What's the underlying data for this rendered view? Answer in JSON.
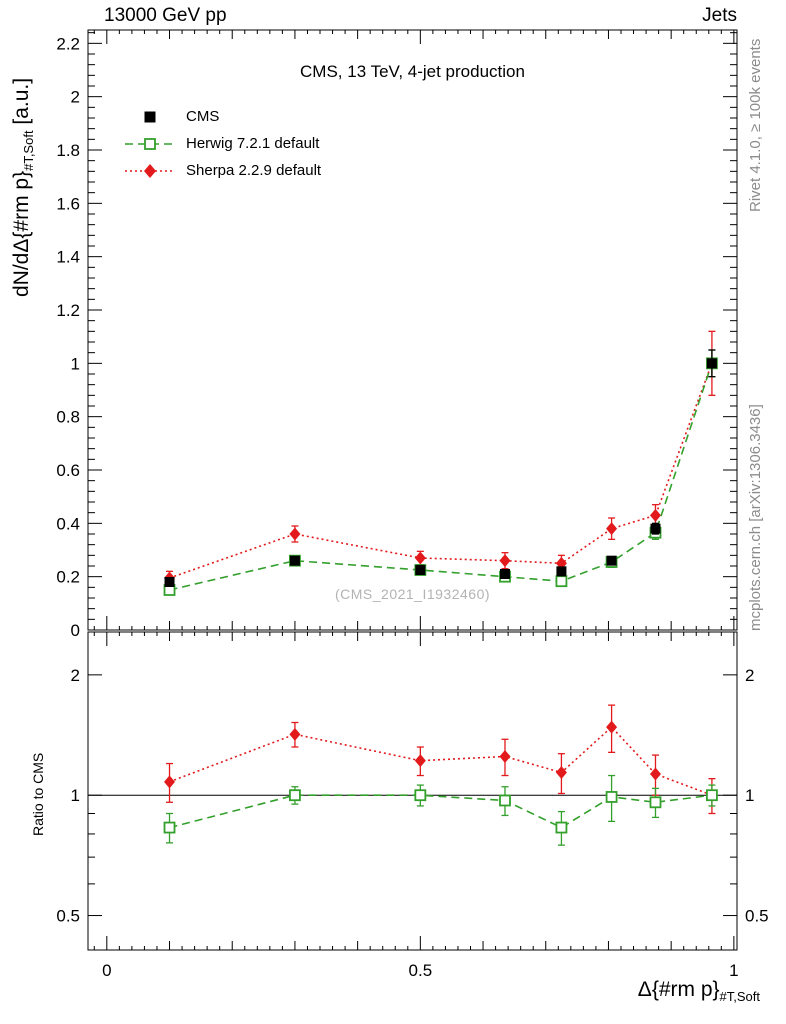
{
  "header": {
    "left": "13000 GeV pp",
    "right": "Jets"
  },
  "titles": {
    "plot_title": "CMS, 13 TeV, 4-jet production",
    "watermark": "(CMS_2021_I1932460)",
    "y_axis_main": "dN/dΔ{#rm p}",
    "y_axis_sub": "#T,Soft",
    "y_axis_unit": " [a.u.]",
    "ratio_y_label": "Ratio to CMS",
    "x_axis_main": "Δ{#rm p}",
    "x_axis_sub": "#T,Soft"
  },
  "side_notes": {
    "top_right": "Rivet 4.1.0, ≥ 100k events",
    "bottom_right": "mcplots.cern.ch [arXiv:1306.3436]"
  },
  "colors": {
    "axis": "#000000",
    "watermark": "#b3b3b3",
    "margin_notes": "#8c8c8c",
    "cms": "#000000",
    "herwig": "#33a02c",
    "sherpa": "#e31a1c"
  },
  "legend": [
    {
      "label": "CMS",
      "marker": "filled-square",
      "color": "#000000",
      "line": "none"
    },
    {
      "label": "Herwig 7.2.1 default",
      "marker": "open-square",
      "color": "#33a02c",
      "line": "dashed"
    },
    {
      "label": "Sherpa 2.2.9 default",
      "marker": "diamond",
      "color": "#e31a1c",
      "line": "dotted"
    }
  ],
  "chart_data": [
    {
      "type": "scatter",
      "role": "main",
      "title": "CMS, 13 TeV, 4-jet production",
      "xlabel": "Δ{#rm p}_{#T,Soft}",
      "ylabel": "dN/dΔ{#rm p}_{#T,Soft} [a.u.]",
      "xlim": [
        -0.03,
        1.005
      ],
      "ylim": [
        0,
        2.25
      ],
      "yscale": "linear",
      "xticks": [
        0,
        0.5,
        1
      ],
      "yticks": [
        0,
        0.2,
        0.4,
        0.6,
        0.8,
        1,
        1.2,
        1.4,
        1.6,
        1.8,
        2,
        2.2
      ],
      "grid": false,
      "legend_position": "top-left",
      "x": [
        0.1,
        0.3,
        0.5,
        0.635,
        0.725,
        0.805,
        0.875,
        0.965
      ],
      "series": [
        {
          "name": "CMS",
          "marker": "filled-square",
          "color": "#000000",
          "line": "none",
          "values": [
            0.18,
            0.26,
            0.225,
            0.21,
            0.22,
            0.26,
            0.38,
            1.0
          ],
          "errors": [
            0.012,
            0.012,
            0.012,
            0.012,
            0.012,
            0.015,
            0.02,
            0.05
          ]
        },
        {
          "name": "Herwig 7.2.1 default",
          "marker": "open-square",
          "color": "#33a02c",
          "line": "dashed",
          "values": [
            0.15,
            0.26,
            0.225,
            0.2,
            0.183,
            0.255,
            0.365,
            1.0
          ],
          "errors": [
            0.015,
            0.015,
            0.015,
            0.015,
            0.015,
            0.02,
            0.025,
            0.05
          ]
        },
        {
          "name": "Sherpa 2.2.9 default",
          "marker": "diamond",
          "color": "#e31a1c",
          "line": "dotted",
          "values": [
            0.195,
            0.36,
            0.27,
            0.26,
            0.25,
            0.38,
            0.43,
            1.0
          ],
          "errors": [
            0.025,
            0.03,
            0.025,
            0.03,
            0.03,
            0.04,
            0.04,
            0.12
          ]
        }
      ]
    },
    {
      "type": "scatter",
      "role": "ratio",
      "ylabel": "Ratio to CMS",
      "yscale": "log",
      "xlim": [
        -0.03,
        1.005
      ],
      "ylim": [
        0.41,
        2.56
      ],
      "xticks": [
        0,
        0.5,
        1
      ],
      "yticks": [
        0.5,
        1,
        2
      ],
      "reference_line": 1,
      "x": [
        0.1,
        0.3,
        0.5,
        0.635,
        0.725,
        0.805,
        0.875,
        0.965
      ],
      "series": [
        {
          "name": "Herwig 7.2.1 default",
          "marker": "open-square",
          "color": "#33a02c",
          "line": "dashed",
          "values": [
            0.83,
            1.0,
            1.0,
            0.97,
            0.83,
            0.99,
            0.96,
            1.0
          ],
          "errors": [
            0.07,
            0.05,
            0.06,
            0.08,
            0.08,
            0.13,
            0.08,
            0.06
          ]
        },
        {
          "name": "Sherpa 2.2.9 default",
          "marker": "diamond",
          "color": "#e31a1c",
          "line": "dotted",
          "values": [
            1.08,
            1.42,
            1.22,
            1.25,
            1.14,
            1.48,
            1.13,
            1.0
          ],
          "errors": [
            0.12,
            0.1,
            0.1,
            0.13,
            0.13,
            0.2,
            0.13,
            0.1
          ]
        }
      ]
    }
  ]
}
